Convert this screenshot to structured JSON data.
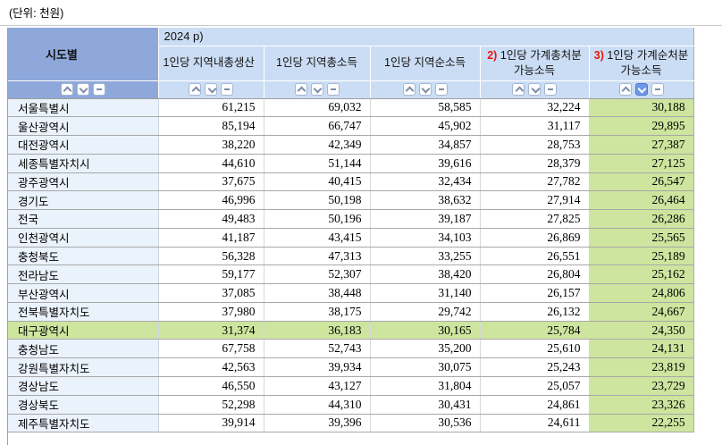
{
  "unit_label": "(단위: 천원)",
  "table": {
    "corner_header": "시도별",
    "year_header": "2024 p)",
    "columns": [
      {
        "prefix": "",
        "label": "1인당 지역내총생산"
      },
      {
        "prefix": "",
        "label": "1인당 지역총소득"
      },
      {
        "prefix": "",
        "label": "1인당 지역순소득"
      },
      {
        "prefix": "2)",
        "label": "1인당 가계총처분가능소득"
      },
      {
        "prefix": "3)",
        "label": "1인당 가계순처분가능소득"
      }
    ],
    "active_sort": {
      "column_index": 5,
      "direction": "desc"
    },
    "highlighted_region": "대구광역시",
    "rows": [
      {
        "region": "서울특별시",
        "values": [
          "61,215",
          "69,032",
          "58,585",
          "32,224",
          "30,188"
        ],
        "highlighted": false
      },
      {
        "region": "울산광역시",
        "values": [
          "85,194",
          "66,747",
          "45,902",
          "31,117",
          "29,895"
        ],
        "highlighted": false
      },
      {
        "region": "대전광역시",
        "values": [
          "38,220",
          "42,349",
          "34,857",
          "28,753",
          "27,387"
        ],
        "highlighted": false
      },
      {
        "region": "세종특별자치시",
        "values": [
          "44,610",
          "51,144",
          "39,616",
          "28,379",
          "27,125"
        ],
        "highlighted": false
      },
      {
        "region": "광주광역시",
        "values": [
          "37,675",
          "40,415",
          "32,434",
          "27,782",
          "26,547"
        ],
        "highlighted": false
      },
      {
        "region": "경기도",
        "values": [
          "46,996",
          "50,198",
          "38,632",
          "27,914",
          "26,464"
        ],
        "highlighted": false
      },
      {
        "region": "전국",
        "values": [
          "49,483",
          "50,196",
          "39,187",
          "27,825",
          "26,286"
        ],
        "highlighted": false
      },
      {
        "region": "인천광역시",
        "values": [
          "41,187",
          "43,415",
          "34,103",
          "26,869",
          "25,565"
        ],
        "highlighted": false
      },
      {
        "region": "충청북도",
        "values": [
          "56,328",
          "47,313",
          "33,255",
          "26,551",
          "25,189"
        ],
        "highlighted": false
      },
      {
        "region": "전라남도",
        "values": [
          "59,177",
          "52,307",
          "38,420",
          "26,804",
          "25,162"
        ],
        "highlighted": false
      },
      {
        "region": "부산광역시",
        "values": [
          "37,085",
          "38,448",
          "31,140",
          "26,157",
          "24,806"
        ],
        "highlighted": false
      },
      {
        "region": "전북특별자치도",
        "values": [
          "37,980",
          "38,175",
          "29,742",
          "26,132",
          "24,667"
        ],
        "highlighted": false
      },
      {
        "region": "대구광역시",
        "values": [
          "31,374",
          "36,183",
          "30,165",
          "25,784",
          "24,350"
        ],
        "highlighted": true
      },
      {
        "region": "충청남도",
        "values": [
          "67,758",
          "52,743",
          "35,200",
          "25,610",
          "24,131"
        ],
        "highlighted": false
      },
      {
        "region": "강원특별자치도",
        "values": [
          "42,563",
          "39,934",
          "30,075",
          "25,243",
          "23,819"
        ],
        "highlighted": false
      },
      {
        "region": "경상남도",
        "values": [
          "46,550",
          "43,127",
          "31,804",
          "25,057",
          "23,729"
        ],
        "highlighted": false
      },
      {
        "region": "경상북도",
        "values": [
          "52,298",
          "44,310",
          "30,431",
          "24,861",
          "23,326"
        ],
        "highlighted": false
      },
      {
        "region": "제주특별자치도",
        "values": [
          "39,914",
          "39,396",
          "30,536",
          "24,611",
          "22,255"
        ],
        "highlighted": false
      }
    ]
  },
  "icons": {
    "sort_ascending": "chevron-up",
    "sort_descending": "chevron-down",
    "sort_clear": "minus"
  },
  "colors": {
    "header_dark_blue": "#8ea8db",
    "header_light_blue": "#cbddf4",
    "row_label_blue": "#eaf2fb",
    "highlight_green": "#cde59e",
    "active_sort_blue": "#6d97e8",
    "footnote_red": "#e8160c"
  }
}
